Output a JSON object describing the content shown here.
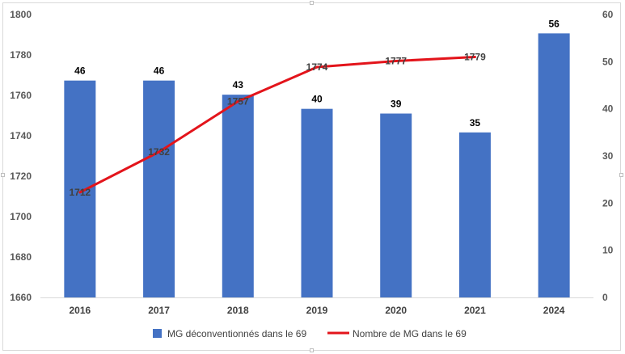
{
  "chart_data": {
    "type": "bar",
    "categories": [
      "2016",
      "2017",
      "2018",
      "2019",
      "2020",
      "2021",
      "2024"
    ],
    "series": [
      {
        "name": "MG déconventionnés dans le 69",
        "type": "bar",
        "axis": "right",
        "color": "#4472C4",
        "values": [
          46,
          46,
          43,
          40,
          39,
          35,
          56
        ]
      },
      {
        "name": "Nombre de MG dans le 69",
        "type": "line",
        "axis": "left",
        "color": "#E3141B",
        "values": [
          1712,
          1732,
          1757,
          1774,
          1777,
          1779,
          null
        ]
      }
    ],
    "y_left": {
      "ylim": [
        1660,
        1800
      ],
      "ticks": [
        "1660",
        "1680",
        "1700",
        "1720",
        "1740",
        "1760",
        "1780",
        "1800"
      ]
    },
    "y_right": {
      "ylim": [
        0,
        60
      ],
      "ticks": [
        "0",
        "10",
        "20",
        "30",
        "40",
        "50",
        "60"
      ]
    },
    "grid": false,
    "legend": "bottom"
  }
}
